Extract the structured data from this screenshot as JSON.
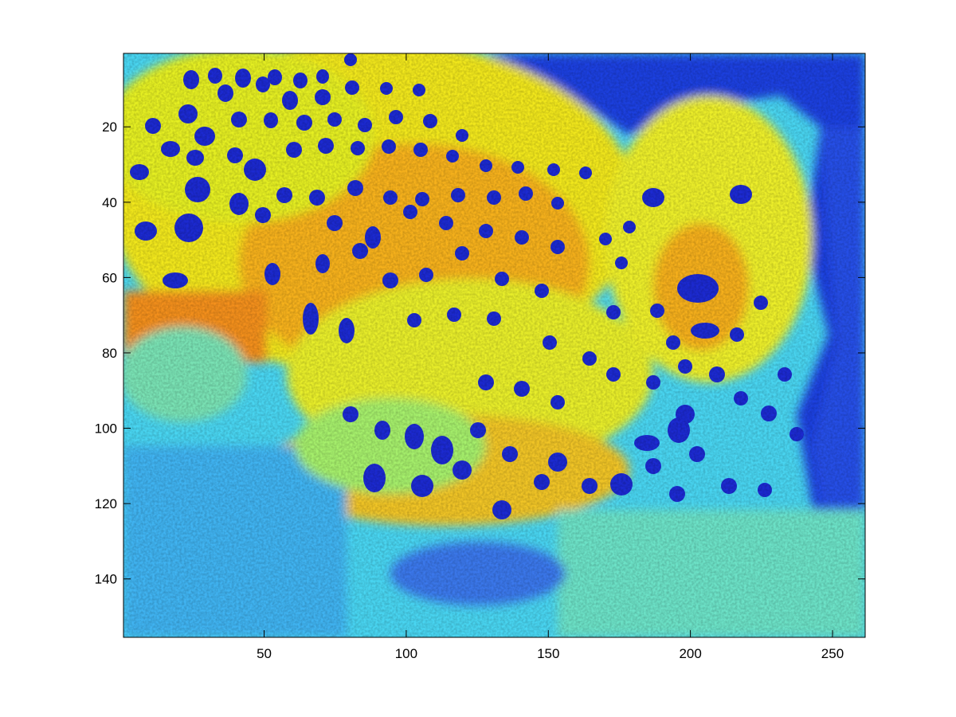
{
  "figure": {
    "background": "#ffffff",
    "axes_color": "#000000"
  },
  "chart_data": {
    "type": "heatmap",
    "title": "",
    "xlabel": "",
    "ylabel": "",
    "colormap": "jet",
    "image_size": {
      "columns": 261,
      "rows": 155
    },
    "xlim": [
      0.5,
      261.5
    ],
    "ylim": [
      155.5,
      0.5
    ],
    "y_direction": "reversed",
    "x_ticks": [
      50,
      100,
      150,
      200,
      250
    ],
    "y_ticks": [
      20,
      40,
      60,
      80,
      100,
      120,
      140
    ],
    "x_tick_labels": [
      "50",
      "100",
      "150",
      "200",
      "250"
    ],
    "y_tick_labels": [
      "20",
      "40",
      "60",
      "80",
      "100",
      "120",
      "140"
    ],
    "grid": false,
    "legend": "none",
    "colorbar": false,
    "depicted_content": "false-color intensity image of a cheetah lying down, head on the right, spotted coat, grass in foreground"
  }
}
